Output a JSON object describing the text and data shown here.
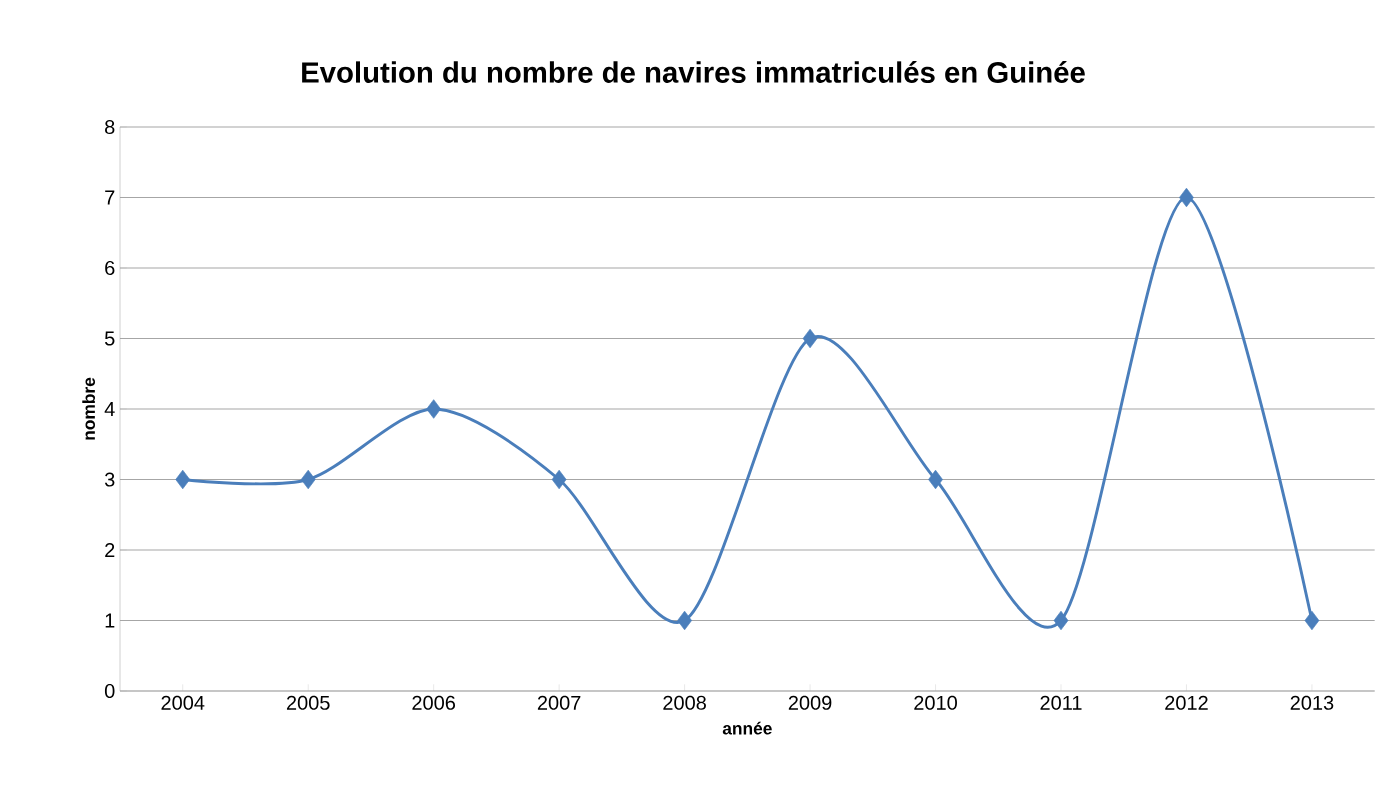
{
  "chart_data": {
    "type": "line",
    "title": "Evolution du nombre de navires immatriculés en Guinée",
    "xlabel": "année",
    "ylabel": "nombre",
    "categories": [
      "2004",
      "2005",
      "2006",
      "2007",
      "2008",
      "2009",
      "2010",
      "2011",
      "2012",
      "2013"
    ],
    "series": [
      {
        "color": "#4a7ebb",
        "values": [
          3,
          3,
          4,
          3,
          1,
          5,
          3,
          1,
          7,
          1
        ]
      }
    ],
    "ylim": [
      0,
      8
    ],
    "yticks": [
      0,
      1,
      2,
      3,
      4,
      5,
      6,
      7,
      8
    ],
    "grid": "y",
    "legend": false,
    "marker": "diamond",
    "line_style": "solid"
  }
}
